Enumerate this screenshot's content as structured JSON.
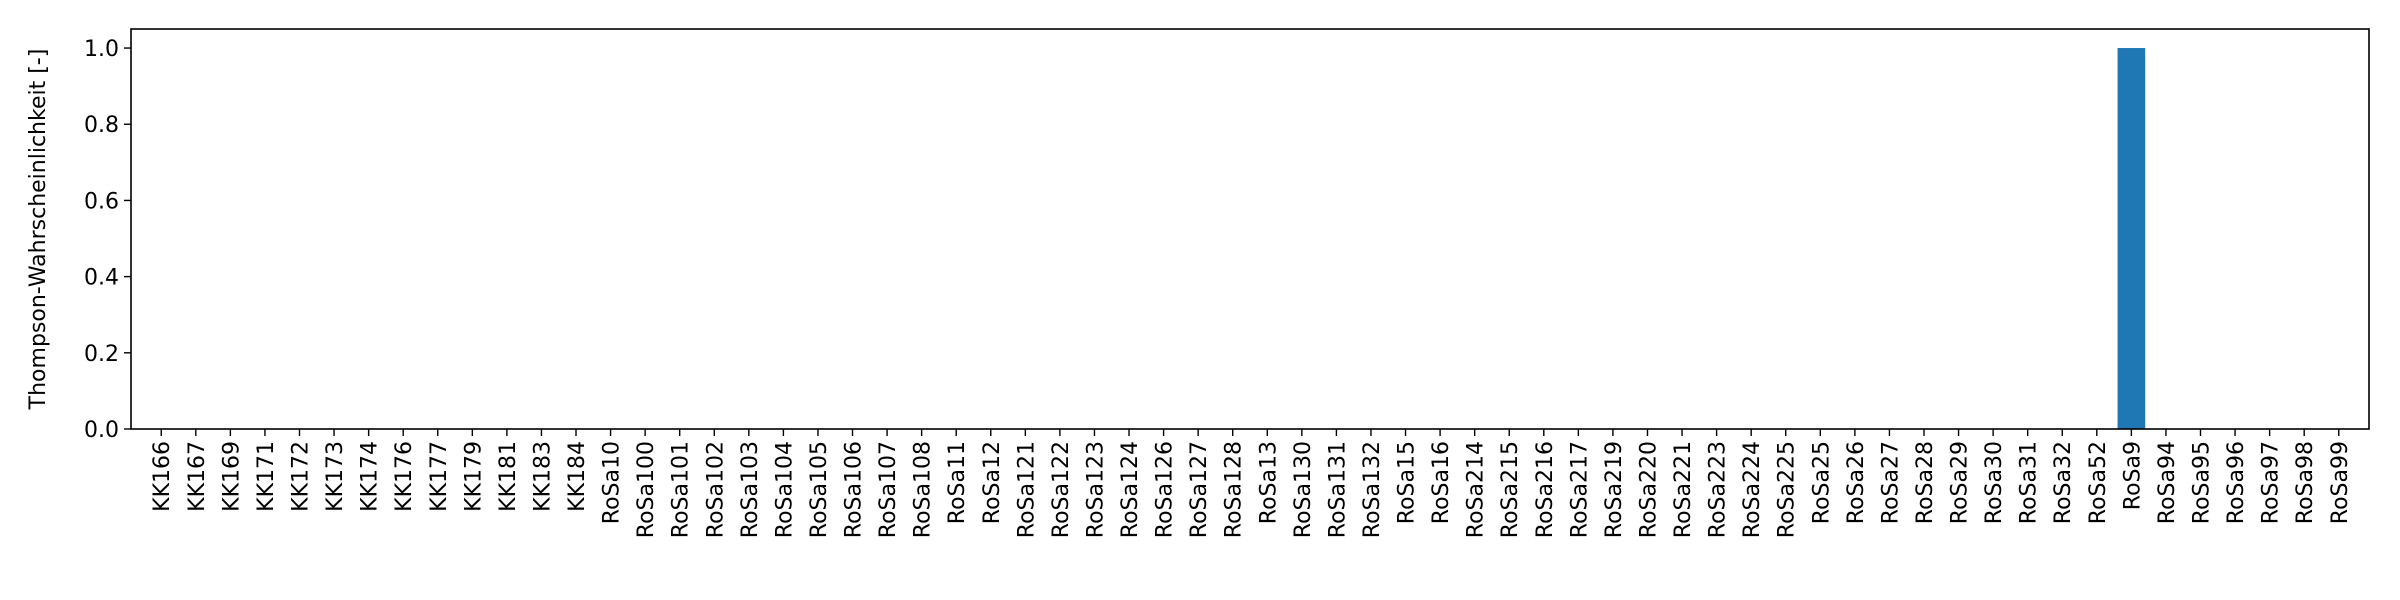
{
  "chart_data": {
    "type": "bar",
    "ylabel": "Thompson-Wahrscheinlichkeit [-]",
    "xlabel": "",
    "ylim": [
      0,
      1.05
    ],
    "yticks": [
      "0.0",
      "0.2",
      "0.4",
      "0.6",
      "0.8",
      "1.0"
    ],
    "grid": false,
    "bar_color": "#1f77b4",
    "categories": [
      "KK166",
      "KK167",
      "KK169",
      "KK171",
      "KK172",
      "KK173",
      "KK174",
      "KK176",
      "KK177",
      "KK179",
      "KK181",
      "KK183",
      "KK184",
      "RoSa10",
      "RoSa100",
      "RoSa101",
      "RoSa102",
      "RoSa103",
      "RoSa104",
      "RoSa105",
      "RoSa106",
      "RoSa107",
      "RoSa108",
      "RoSa11",
      "RoSa12",
      "RoSa121",
      "RoSa122",
      "RoSa123",
      "RoSa124",
      "RoSa126",
      "RoSa127",
      "RoSa128",
      "RoSa13",
      "RoSa130",
      "RoSa131",
      "RoSa132",
      "RoSa15",
      "RoSa16",
      "RoSa214",
      "RoSa215",
      "RoSa216",
      "RoSa217",
      "RoSa219",
      "RoSa220",
      "RoSa221",
      "RoSa223",
      "RoSa224",
      "RoSa225",
      "RoSa25",
      "RoSa26",
      "RoSa27",
      "RoSa28",
      "RoSa29",
      "RoSa30",
      "RoSa31",
      "RoSa32",
      "RoSa52",
      "RoSa9",
      "RoSa94",
      "RoSa95",
      "RoSa96",
      "RoSa97",
      "RoSa98",
      "RoSa99"
    ],
    "values": [
      0,
      0,
      0,
      0,
      0,
      0,
      0,
      0,
      0,
      0,
      0,
      0,
      0,
      0,
      0,
      0,
      0,
      0,
      0,
      0,
      0,
      0,
      0,
      0,
      0,
      0,
      0,
      0,
      0,
      0,
      0,
      0,
      0,
      0,
      0,
      0,
      0,
      0,
      0,
      0,
      0,
      0,
      0,
      0,
      0,
      0,
      0,
      0,
      0,
      0,
      0,
      0,
      0,
      0,
      0,
      0,
      0,
      1.0,
      0,
      0,
      0,
      0,
      0,
      0
    ]
  }
}
